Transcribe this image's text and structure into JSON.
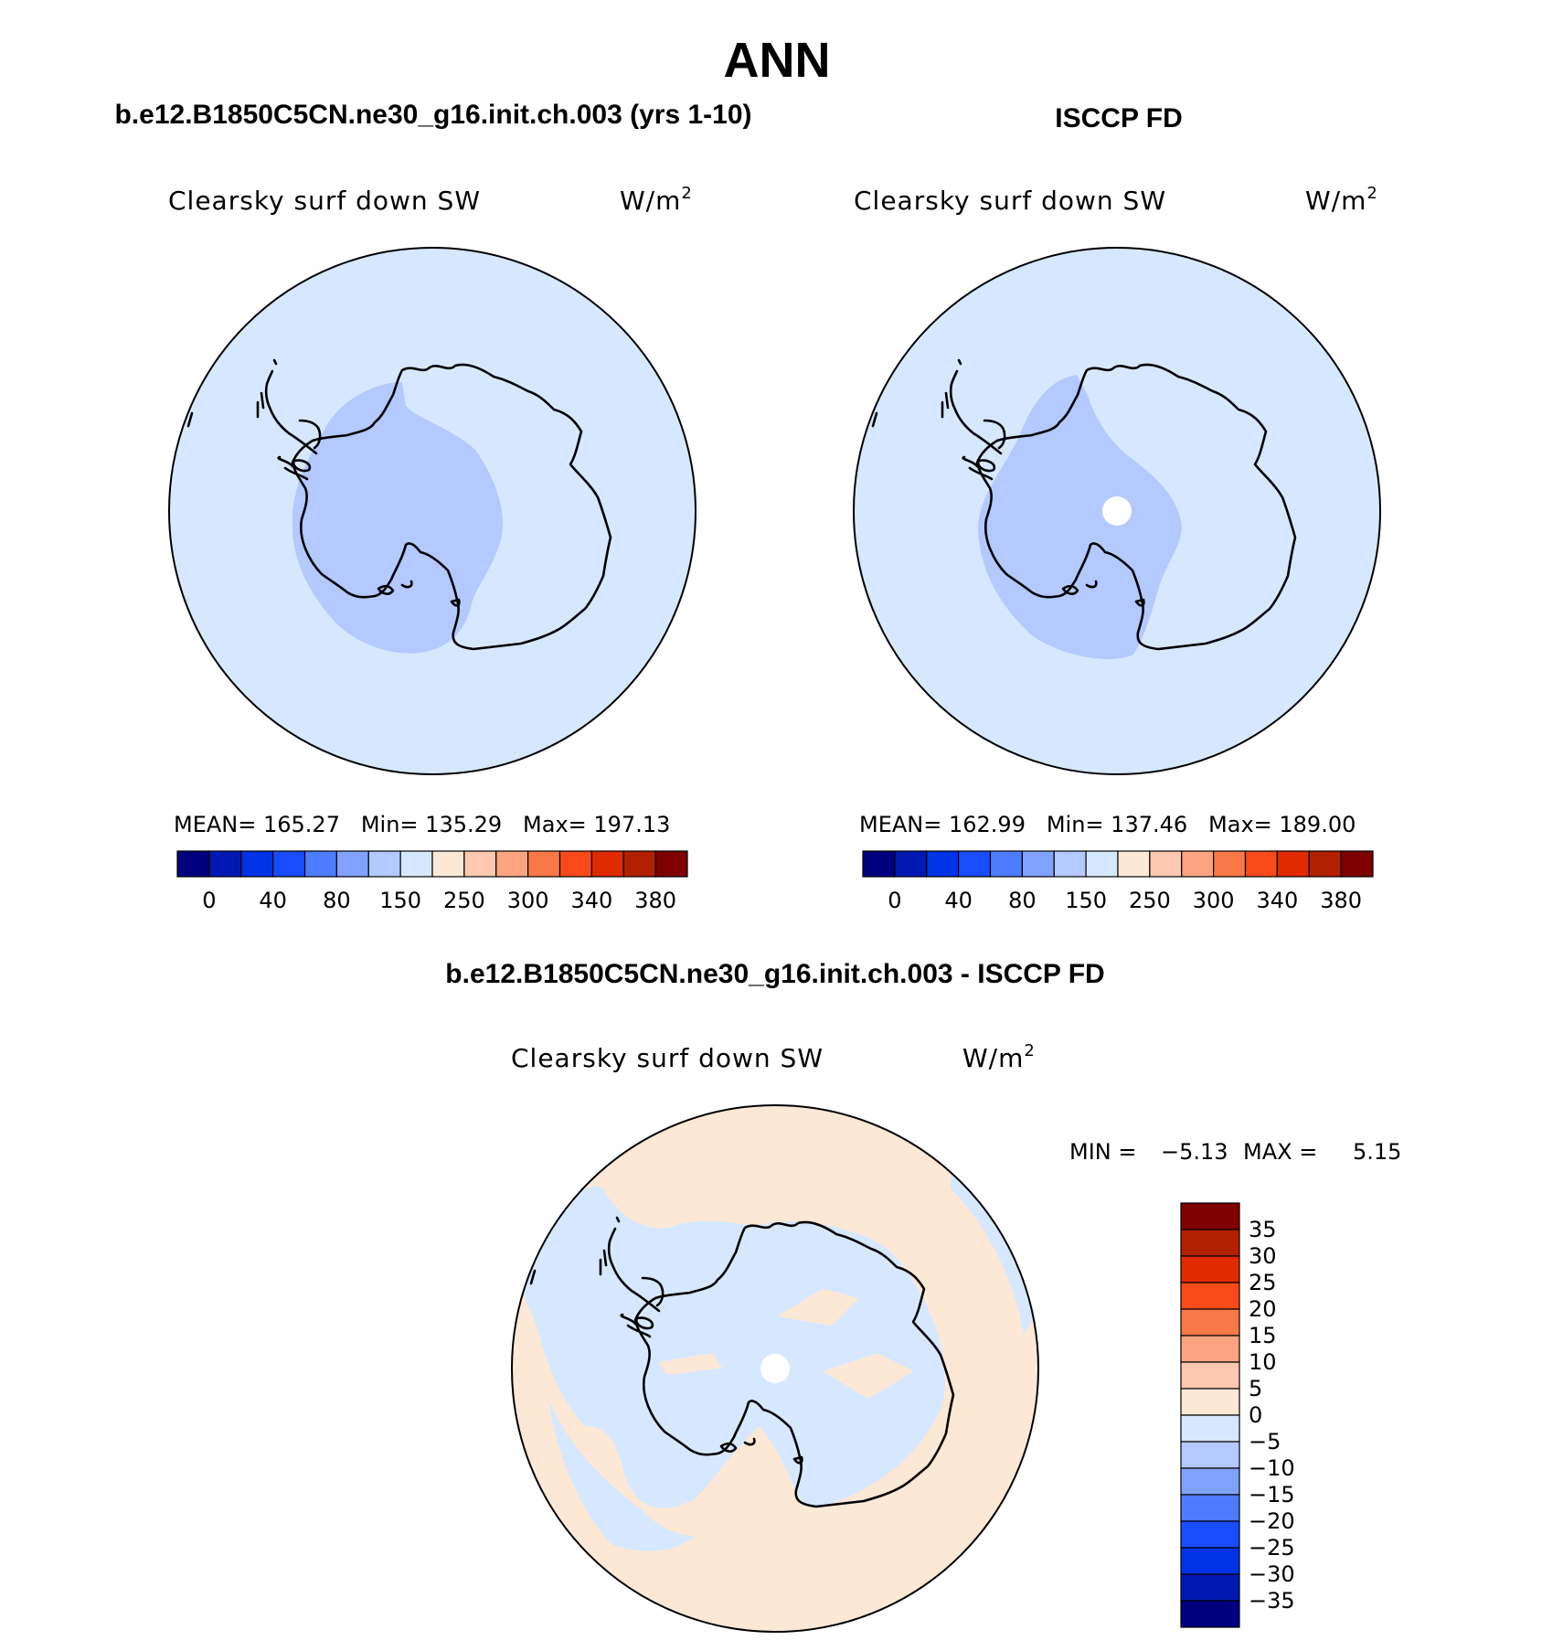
{
  "title": "ANN",
  "panels": [
    {
      "case_title": "b.e12.B1850C5CN.ne30_g16.init.ch.003 (yrs 1-10)",
      "variable": "Clearsky surf down SW",
      "units": "W/m",
      "units_sup": "2",
      "stats": "MEAN= 165.27   Min= 135.29   Max= 197.13",
      "missing_pole": false
    },
    {
      "case_title": "ISCCP FD",
      "variable": "Clearsky surf down SW",
      "units": "W/m",
      "units_sup": "2",
      "stats": "MEAN= 162.99   Min= 137.46   Max= 189.00",
      "missing_pole": true
    }
  ],
  "abs_colorbar": {
    "colors": [
      "#00007f",
      "#0019b3",
      "#0032e6",
      "#1a4cff",
      "#4d7cff",
      "#80a2ff",
      "#b3c9ff",
      "#d6e8ff",
      "#fde8d6",
      "#fcc9b0",
      "#fba47f",
      "#fa7848",
      "#f84a1a",
      "#e02a00",
      "#b32000",
      "#7f0000"
    ],
    "tick_labels": [
      "0",
      "40",
      "80",
      "150",
      "250",
      "300",
      "340",
      "380"
    ]
  },
  "diff_panel": {
    "case_title": "b.e12.B1850C5CN.ne30_g16.init.ch.003 - ISCCP FD",
    "variable": "Clearsky surf down SW",
    "units": "W/m",
    "units_sup": "2",
    "min_label": "MIN =",
    "min_value": "−5.13",
    "max_label": "MAX =",
    "max_value": "5.15"
  },
  "diff_colorbar": {
    "colors_top_to_bottom": [
      "#7f0000",
      "#b32000",
      "#e02a00",
      "#f84a1a",
      "#fa7848",
      "#fba47f",
      "#fcc9b0",
      "#fde8d6",
      "#d6e8ff",
      "#b3c9ff",
      "#80a2ff",
      "#4d7cff",
      "#1a4cff",
      "#0032e6",
      "#0019b3",
      "#00007f"
    ],
    "tick_labels": [
      "35",
      "30",
      "25",
      "20",
      "15",
      "10",
      "5",
      "0",
      "−5",
      "−10",
      "−15",
      "−20",
      "−25",
      "−30",
      "−35"
    ]
  },
  "map_colors": {
    "ocean_light_blue": "#d6e8ff",
    "medium_blue": "#b3c9ff",
    "light_peach": "#fde8d6"
  }
}
